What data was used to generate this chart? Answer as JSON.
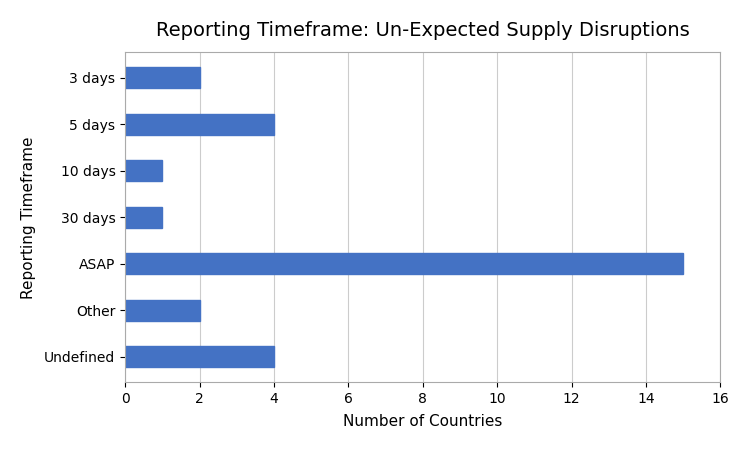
{
  "title": "Reporting Timeframe: Un-Expected Supply Disruptions",
  "categories": [
    "3 days",
    "5 days",
    "10 days",
    "30 days",
    "ASAP",
    "Other",
    "Undefined"
  ],
  "values": [
    2,
    4,
    1,
    1,
    15,
    2,
    4
  ],
  "bar_color": "#4472C4",
  "xlabel": "Number of Countries",
  "ylabel": "Reporting Timeframe",
  "xlim": [
    0,
    16
  ],
  "xticks": [
    0,
    2,
    4,
    6,
    8,
    10,
    12,
    14,
    16
  ],
  "title_fontsize": 14,
  "axis_label_fontsize": 11,
  "tick_fontsize": 10,
  "bar_height": 0.45,
  "grid_color": "#CCCCCC",
  "background_color": "#FFFFFF",
  "figure_background": "#FFFFFF"
}
